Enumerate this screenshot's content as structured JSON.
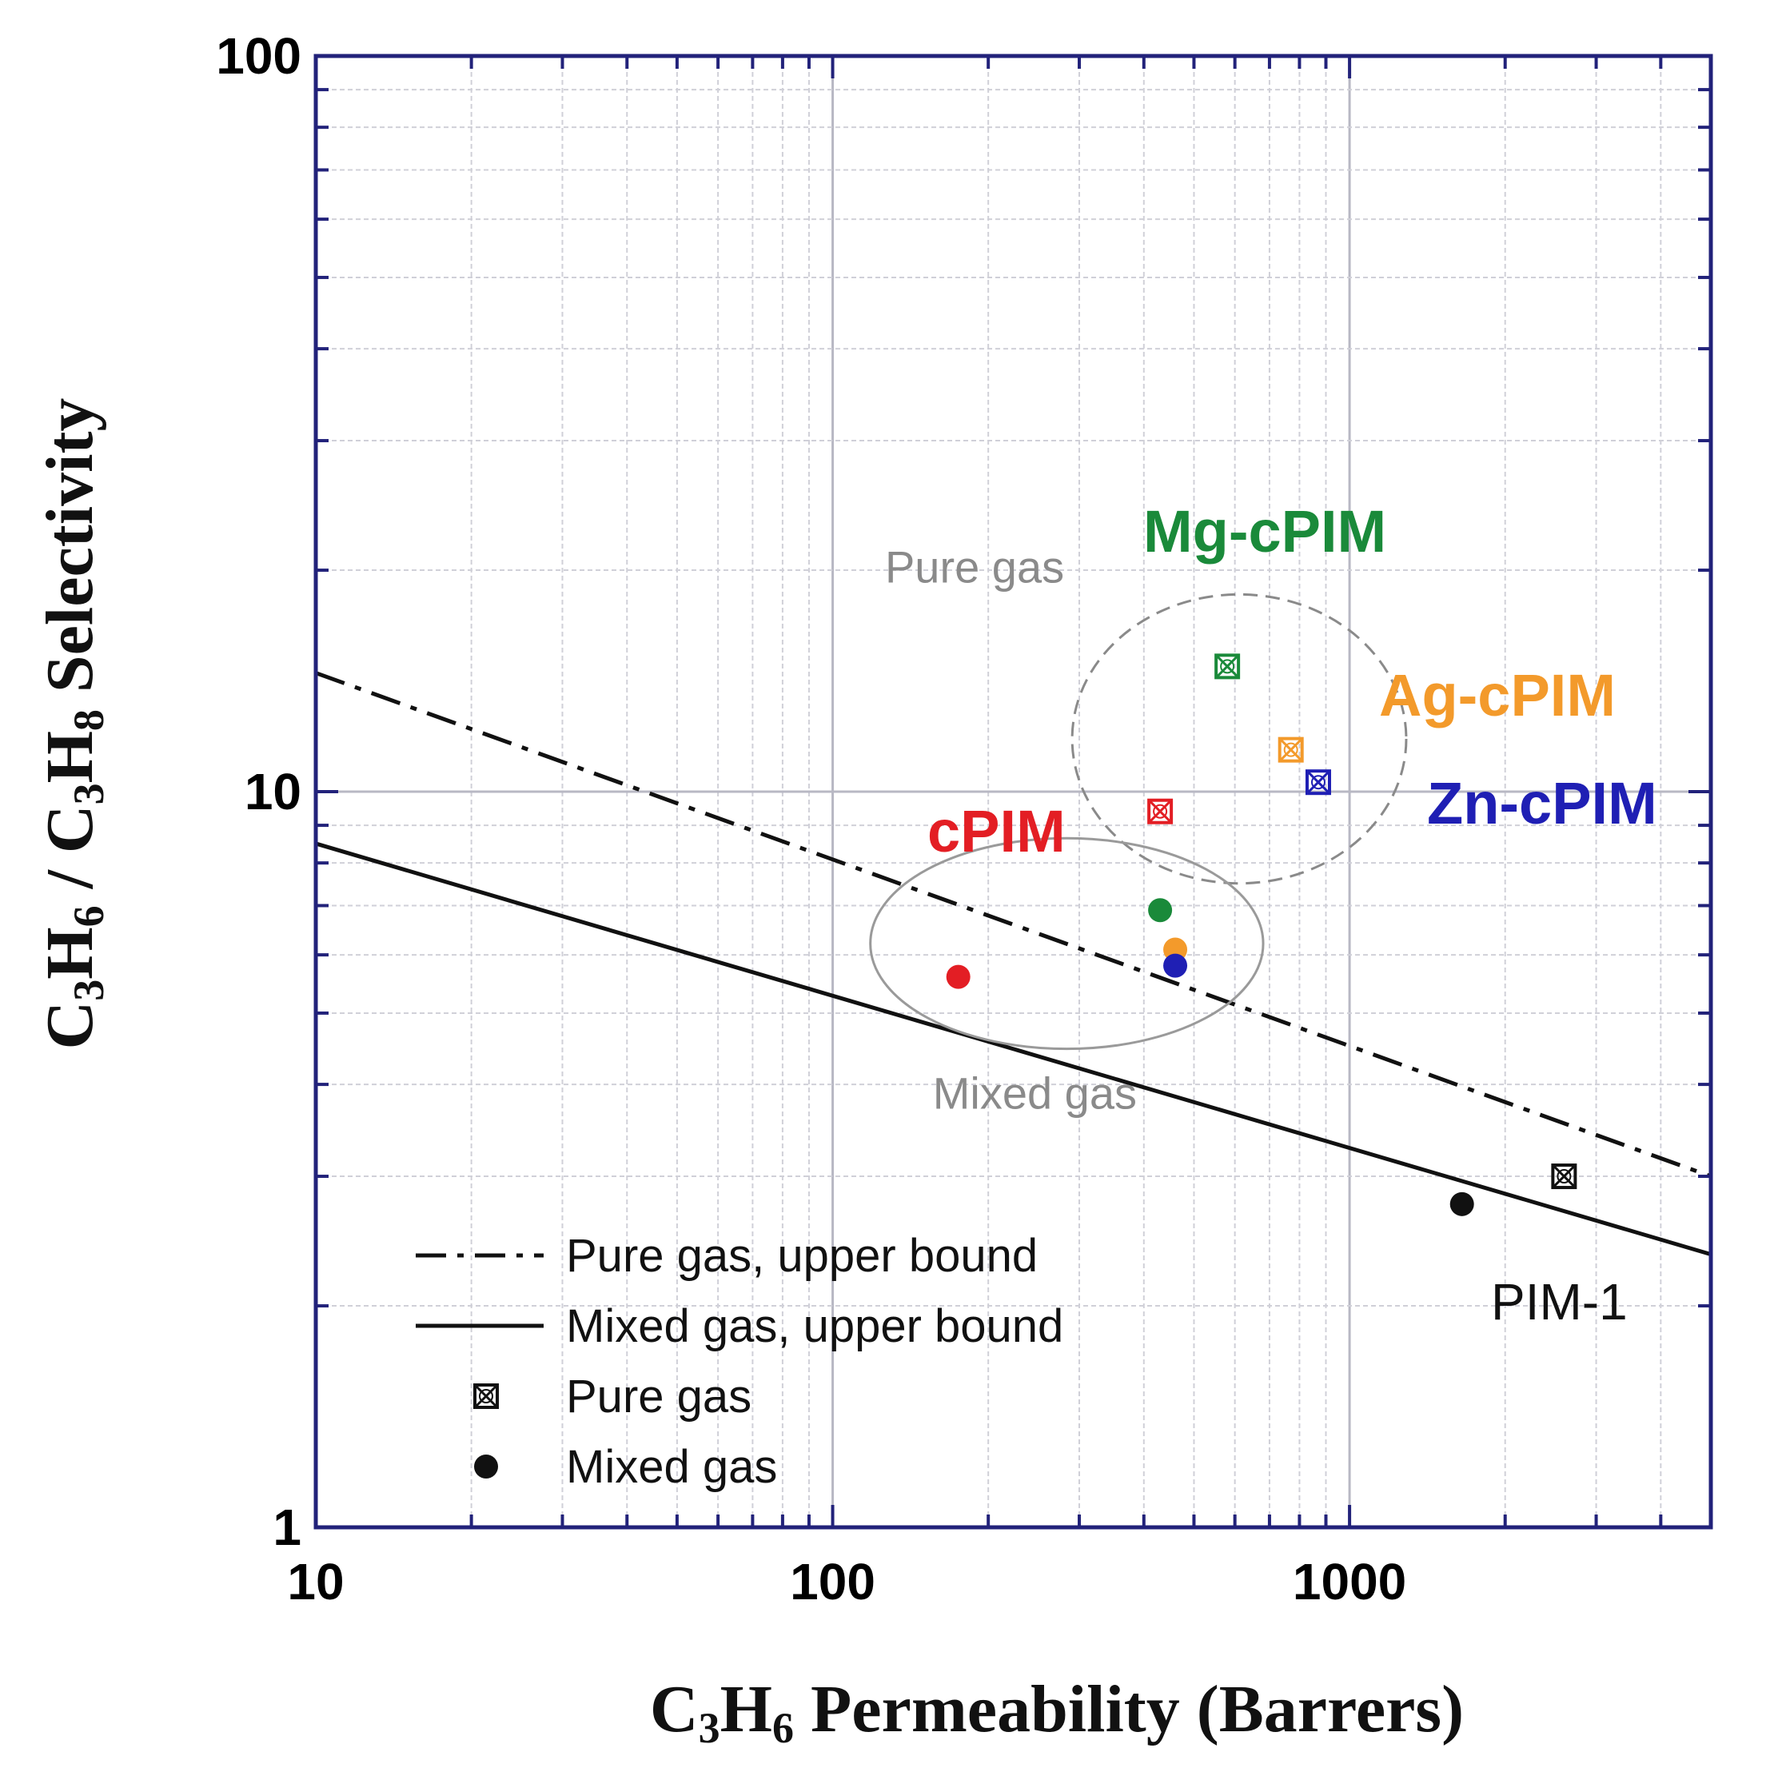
{
  "chart_data": {
    "type": "scatter",
    "x_scale": "log",
    "y_scale": "log",
    "xlim": [
      10,
      5000
    ],
    "ylim": [
      1,
      100
    ],
    "x_ticks": [
      "10",
      "100",
      "1000"
    ],
    "y_ticks": [
      "1",
      "10",
      "100"
    ],
    "xlabel": {
      "a": "C",
      "b": "3",
      "c": "H",
      "d": "6",
      "e": " Permeability (Barrers)"
    },
    "ylabel": {
      "a": "C",
      "b": "3",
      "c": "H",
      "d": "6",
      "e": " / C",
      "f": "3",
      "g": "H",
      "h": "8",
      "i": "  Selectivity"
    },
    "grid": true,
    "upper_bounds": [
      {
        "name": "Pure gas, upper bound",
        "style": "dashdot",
        "points": [
          [
            10,
            14.5
          ],
          [
            5000,
            3.0
          ]
        ]
      },
      {
        "name": "Mixed gas, upper bound",
        "style": "solid",
        "points": [
          [
            10,
            8.5
          ],
          [
            5000,
            2.35
          ]
        ]
      }
    ],
    "series": [
      {
        "name": "cPIM",
        "color": "#e31e24",
        "pure": [
          430,
          9.4
        ],
        "mixed": [
          175,
          5.6
        ]
      },
      {
        "name": "Mg-cPIM",
        "color": "#1a8a3a",
        "pure": [
          580,
          14.8
        ],
        "mixed": [
          430,
          6.9
        ]
      },
      {
        "name": "Ag-cPIM",
        "color": "#f39a2b",
        "pure": [
          770,
          11.4
        ],
        "mixed": [
          460,
          6.1
        ]
      },
      {
        "name": "Zn-cPIM",
        "color": "#1f1fb4",
        "pure": [
          870,
          10.3
        ],
        "mixed": [
          460,
          5.8
        ]
      },
      {
        "name": "PIM-1",
        "color": "#111111",
        "pure": [
          2600,
          3.0
        ],
        "mixed": [
          1650,
          2.75
        ]
      }
    ],
    "group_annotations": {
      "pure": "Pure gas",
      "mixed": "Mixed gas"
    },
    "legend": {
      "position": "bottom-left",
      "items": [
        {
          "label": "Pure gas, upper bound",
          "marker": "dashdot-line"
        },
        {
          "label": "Mixed gas, upper bound",
          "marker": "solid-line"
        },
        {
          "label": "Pure gas",
          "marker": "crossed-square"
        },
        {
          "label": "Mixed gas",
          "marker": "filled-circle"
        }
      ]
    }
  }
}
